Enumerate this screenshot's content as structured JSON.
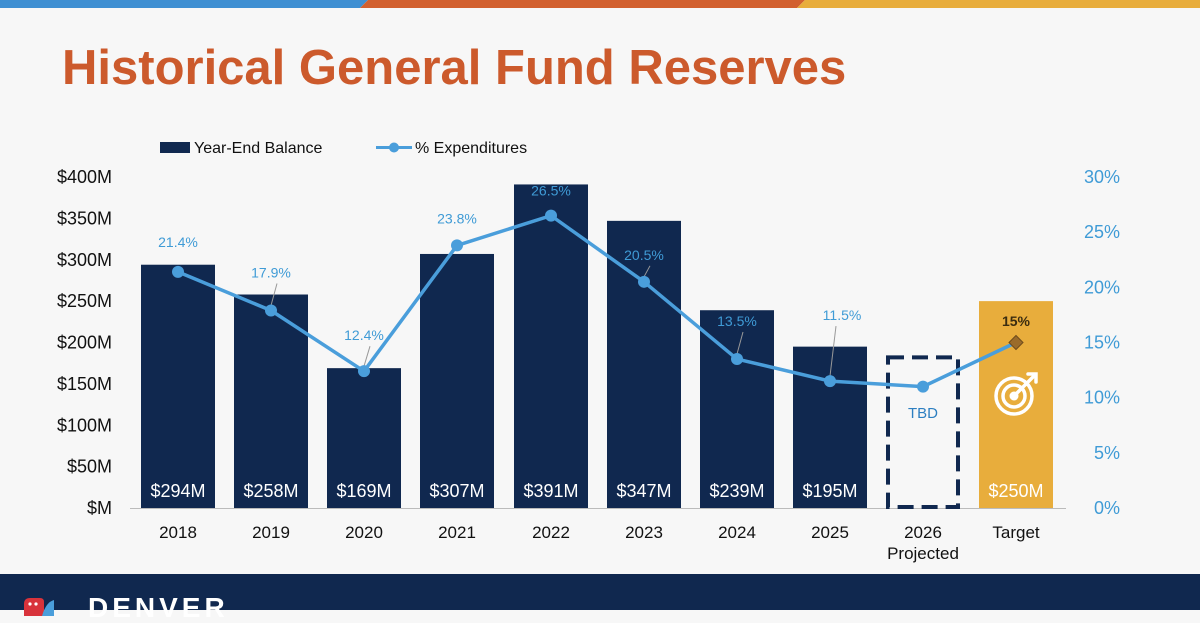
{
  "title": "Historical General Fund Reserves",
  "colors": {
    "title": "#cc5a2c",
    "bar": "#10284f",
    "target_bar": "#e8ad3c",
    "line": "#4a9edb",
    "right_axis_text": "#3f9bd6",
    "top_stripe": [
      "#3f8fd2",
      "#d2602f",
      "#e8ad3c"
    ],
    "footer": "#10284f"
  },
  "legend": {
    "bar_label": "Year-End Balance",
    "line_label": "% Expenditures"
  },
  "footer": {
    "logo_text": "DENVER"
  },
  "chart_data": {
    "type": "bar",
    "categories": [
      "2018",
      "2019",
      "2020",
      "2021",
      "2022",
      "2023",
      "2024",
      "2025",
      "2026\nProjected",
      "Target"
    ],
    "series": [
      {
        "name": "Year-End Balance",
        "type": "bar",
        "values": [
          294,
          258,
          169,
          307,
          391,
          347,
          239,
          195,
          null,
          250
        ],
        "labels": [
          "$294M",
          "$258M",
          "$169M",
          "$307M",
          "$391M",
          "$347M",
          "$239M",
          "$195M",
          "TBD",
          "$250M"
        ]
      },
      {
        "name": "% Expenditures",
        "type": "line",
        "axis": "right",
        "values": [
          21.4,
          17.9,
          12.4,
          23.8,
          26.5,
          20.5,
          13.5,
          11.5,
          11,
          15
        ],
        "labels": [
          "21.4%",
          "17.9%",
          "12.4%",
          "23.8%",
          "26.5%",
          "20.5%",
          "13.5%",
          "11.5%",
          "",
          "15%"
        ]
      }
    ],
    "left_axis": {
      "ylim": [
        0,
        400
      ],
      "ticks": [
        0,
        50,
        100,
        150,
        200,
        250,
        300,
        350,
        400
      ],
      "tick_labels": [
        "$M",
        "$50M",
        "$100M",
        "$150M",
        "$200M",
        "$250M",
        "$300M",
        "$350M",
        "$400M"
      ]
    },
    "right_axis": {
      "ylim": [
        0,
        30
      ],
      "ticks": [
        0,
        5,
        10,
        15,
        20,
        25,
        30
      ],
      "tick_labels": [
        "0%",
        "5%",
        "10%",
        "15%",
        "20%",
        "25%",
        "30%"
      ]
    },
    "projected_bar": {
      "category": "2026\nProjected",
      "style": "dashed-outline",
      "label": "TBD",
      "height_value": 182
    },
    "target_icon": "target-bullseye-icon",
    "grid": false,
    "legend_position": "top-left"
  }
}
